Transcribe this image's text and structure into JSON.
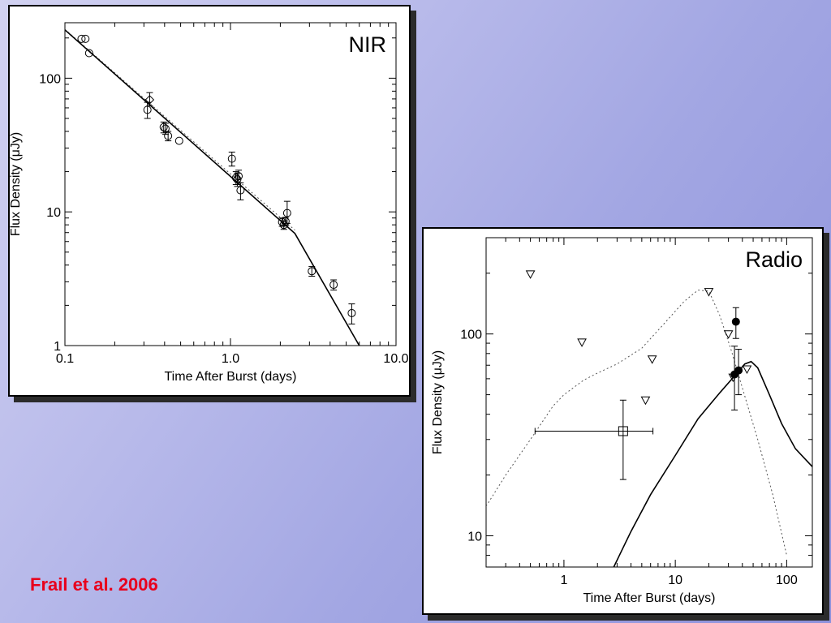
{
  "slide": {
    "citation": "Frail et al. 2006",
    "colors": {
      "background_start": "#d2d2f1",
      "background_end": "#8d91dc",
      "citation": "#e8001c",
      "panel": "#ffffff",
      "ink": "#000000"
    }
  },
  "chart_data": [
    {
      "type": "scatter",
      "title": "NIR",
      "xlabel": "Time After Burst (days)",
      "ylabel": "Flux Density (μJy)",
      "xscale": "log",
      "yscale": "log",
      "xlim": [
        0.1,
        10.0
      ],
      "ylim": [
        1,
        260
      ],
      "grid": false,
      "legend": "none",
      "x_ticks": [
        {
          "value": 0.1,
          "label": "0.1"
        },
        {
          "value": 1.0,
          "label": "1.0"
        },
        {
          "value": 10.0,
          "label": "10.0"
        }
      ],
      "y_ticks": [
        {
          "value": 1,
          "label": "1"
        },
        {
          "value": 10,
          "label": "10"
        },
        {
          "value": 100,
          "label": "100"
        }
      ],
      "points": [
        {
          "x": 0.126,
          "y": 197,
          "marker": "circle"
        },
        {
          "x": 0.133,
          "y": 197,
          "marker": "circle"
        },
        {
          "x": 0.14,
          "y": 154,
          "marker": "circle"
        },
        {
          "x": 0.315,
          "y": 58,
          "yerr": [
            50,
            66
          ],
          "marker": "circle"
        },
        {
          "x": 0.325,
          "y": 69,
          "yerr": [
            62,
            78
          ],
          "marker": "diamond"
        },
        {
          "x": 0.395,
          "y": 43,
          "yerr": [
            39,
            47
          ],
          "marker": "circle"
        },
        {
          "x": 0.405,
          "y": 42,
          "yerr": [
            38,
            46
          ],
          "marker": "circle"
        },
        {
          "x": 0.42,
          "y": 37,
          "yerr": [
            34,
            40
          ],
          "marker": "circle"
        },
        {
          "x": 0.49,
          "y": 34,
          "marker": "circle"
        },
        {
          "x": 1.02,
          "y": 25,
          "yerr": [
            22,
            28
          ],
          "marker": "circle"
        },
        {
          "x": 1.08,
          "y": 18,
          "yerr": [
            16,
            20
          ],
          "marker": "circle"
        },
        {
          "x": 1.1,
          "y": 17.5,
          "yerr": [
            15.5,
            19.5
          ],
          "marker": "circle"
        },
        {
          "x": 1.12,
          "y": 18.5,
          "yerr": [
            16.5,
            20.5
          ],
          "marker": "circle"
        },
        {
          "x": 1.15,
          "y": 14.5,
          "yerr": [
            12.3,
            16.5
          ],
          "marker": "circle"
        },
        {
          "x": 2.05,
          "y": 8.4,
          "yerr": [
            7.8,
            9.0
          ],
          "marker": "circle"
        },
        {
          "x": 2.1,
          "y": 8.0,
          "yerr": [
            7.4,
            8.6
          ],
          "marker": "circle"
        },
        {
          "x": 2.15,
          "y": 8.5,
          "yerr": [
            7.9,
            9.1
          ],
          "marker": "circle"
        },
        {
          "x": 2.2,
          "y": 9.8,
          "yerr": [
            8.2,
            12.0
          ],
          "marker": "circle"
        },
        {
          "x": 3.1,
          "y": 3.6,
          "yerr": [
            3.3,
            3.9
          ],
          "marker": "circle"
        },
        {
          "x": 4.2,
          "y": 2.85,
          "yerr": [
            2.6,
            3.1
          ],
          "marker": "circle"
        },
        {
          "x": 5.4,
          "y": 1.75,
          "yerr": [
            1.45,
            2.05
          ],
          "marker": "circle"
        }
      ],
      "model_solid": [
        {
          "x": 0.1,
          "y": 230
        },
        {
          "x": 2.45,
          "y": 6.9
        },
        {
          "x": 6.0,
          "y": 1.0
        }
      ],
      "model_dotted": [
        {
          "x": 0.1,
          "y": 232
        },
        {
          "x": 2.45,
          "y": 7.3
        }
      ]
    },
    {
      "type": "scatter",
      "title": "Radio",
      "xlabel": "Time After Burst (days)",
      "ylabel": "Flux Density (μJy)",
      "xscale": "log",
      "yscale": "log",
      "xlim": [
        0.2,
        170
      ],
      "ylim": [
        7,
        300
      ],
      "grid": false,
      "legend": "none",
      "x_ticks": [
        {
          "value": 1,
          "label": "1"
        },
        {
          "value": 10,
          "label": "10"
        },
        {
          "value": 100,
          "label": "100"
        }
      ],
      "y_ticks": [
        {
          "value": 10,
          "label": "10"
        },
        {
          "value": 100,
          "label": "100"
        }
      ],
      "upper_limits": [
        {
          "x": 0.5,
          "y": 198
        },
        {
          "x": 1.45,
          "y": 91
        },
        {
          "x": 5.4,
          "y": 47
        },
        {
          "x": 6.2,
          "y": 75
        },
        {
          "x": 20,
          "y": 162
        },
        {
          "x": 30,
          "y": 100
        },
        {
          "x": 33,
          "y": 61
        },
        {
          "x": 44,
          "y": 67
        }
      ],
      "detections": [
        {
          "x": 35,
          "y": 115,
          "yerr": [
            95,
            135
          ],
          "marker": "filled-circle"
        },
        {
          "x": 34,
          "y": 63,
          "yerr": [
            42,
            87
          ],
          "marker": "filled-circle"
        },
        {
          "x": 37,
          "y": 66,
          "yerr": [
            50,
            84
          ],
          "marker": "filled-circle"
        }
      ],
      "boxes": [
        {
          "x": 3.4,
          "y": 33,
          "xerr": [
            0.55,
            6.3
          ],
          "yerr": [
            19,
            47
          ],
          "marker": "open-square"
        }
      ],
      "model_solid": [
        {
          "x": 2.8,
          "y": 7.0
        },
        {
          "x": 4,
          "y": 10.5
        },
        {
          "x": 6,
          "y": 16
        },
        {
          "x": 10,
          "y": 25
        },
        {
          "x": 16,
          "y": 38
        },
        {
          "x": 25,
          "y": 51
        },
        {
          "x": 35,
          "y": 63
        },
        {
          "x": 42,
          "y": 71
        },
        {
          "x": 48,
          "y": 73
        },
        {
          "x": 55,
          "y": 68
        },
        {
          "x": 70,
          "y": 50
        },
        {
          "x": 90,
          "y": 36
        },
        {
          "x": 120,
          "y": 27
        },
        {
          "x": 170,
          "y": 22
        }
      ],
      "model_dotted": [
        {
          "x": 0.2,
          "y": 14
        },
        {
          "x": 0.3,
          "y": 20
        },
        {
          "x": 0.5,
          "y": 30
        },
        {
          "x": 0.8,
          "y": 44
        },
        {
          "x": 1,
          "y": 50
        },
        {
          "x": 1.5,
          "y": 59
        },
        {
          "x": 2,
          "y": 64
        },
        {
          "x": 3,
          "y": 71
        },
        {
          "x": 5,
          "y": 85
        },
        {
          "x": 8,
          "y": 113
        },
        {
          "x": 12,
          "y": 145
        },
        {
          "x": 16,
          "y": 165
        },
        {
          "x": 20,
          "y": 163
        },
        {
          "x": 25,
          "y": 124
        },
        {
          "x": 32,
          "y": 82
        },
        {
          "x": 40,
          "y": 54
        },
        {
          "x": 55,
          "y": 30
        },
        {
          "x": 75,
          "y": 16
        },
        {
          "x": 100,
          "y": 8
        }
      ]
    }
  ]
}
